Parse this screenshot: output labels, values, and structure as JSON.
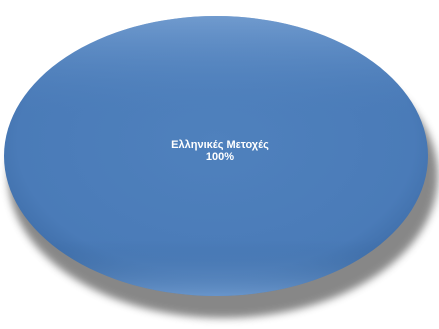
{
  "chart_data": {
    "type": "pie",
    "categories": [
      "Ελληνικές Μετοχές"
    ],
    "values": [
      100
    ],
    "data_labels": [
      {
        "category": "Ελληνικές Μετοχές",
        "percent": "100%"
      }
    ],
    "colors": {
      "slice": "#4f81bd",
      "slice_light": "#6e9bd3",
      "slice_dark": "#2f5f96",
      "shadow": "#6b6b6b"
    },
    "legend": "none",
    "style": "3d-beveled"
  }
}
